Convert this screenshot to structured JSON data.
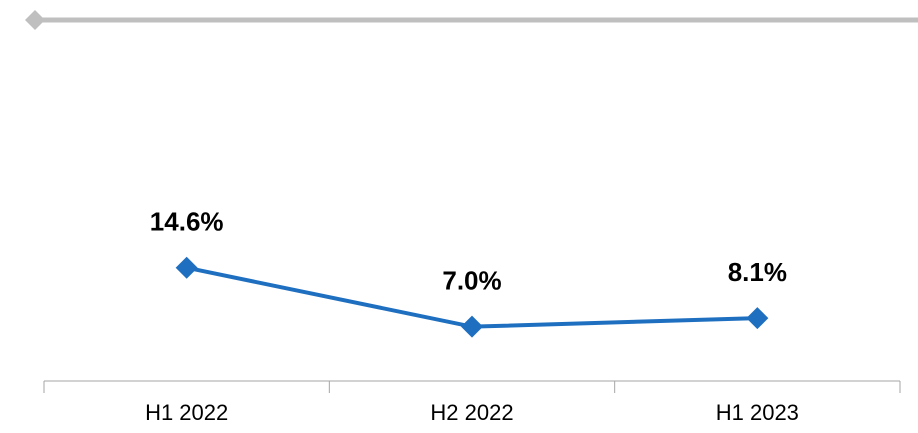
{
  "chart_data": {
    "type": "line",
    "categories": [
      "H1 2022",
      "H2 2022",
      "H1 2023"
    ],
    "series": [
      {
        "color": "#1f6fc0",
        "values": [
          14.6,
          7.0,
          8.1
        ],
        "value_labels": [
          "14.6%",
          "7.0%",
          "8.1%"
        ]
      }
    ]
  }
}
